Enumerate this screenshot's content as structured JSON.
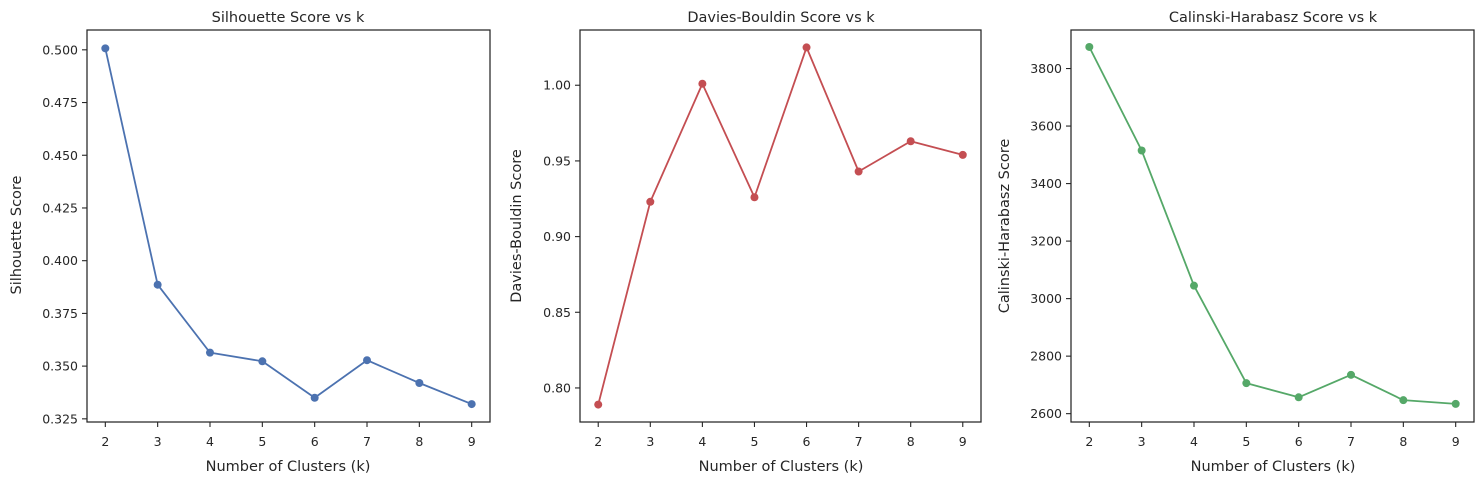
{
  "chart_data": [
    {
      "type": "line",
      "title": "Silhouette Score vs k",
      "xlabel": "Number of Clusters (k)",
      "ylabel": "Silhouette Score",
      "x": [
        2,
        3,
        4,
        5,
        6,
        7,
        8,
        9
      ],
      "xticks": [
        "2",
        "3",
        "4",
        "5",
        "6",
        "7",
        "8",
        "9"
      ],
      "yticks": [
        0.325,
        0.35,
        0.375,
        0.4,
        0.425,
        0.45,
        0.475,
        0.5
      ],
      "ytick_labels": [
        "0.325",
        "0.350",
        "0.375",
        "0.400",
        "0.425",
        "0.450",
        "0.475",
        "0.500"
      ],
      "xlim": [
        1.65,
        9.35
      ],
      "ylim": [
        0.3235,
        0.5094
      ],
      "grid": false,
      "series": [
        {
          "values": [
            0.5007,
            0.3886,
            0.3564,
            0.3523,
            0.335,
            0.3528,
            0.342,
            0.332
          ],
          "color": "#4c72b0",
          "marker": "circle"
        }
      ]
    },
    {
      "type": "line",
      "title": "Davies-Bouldin Score vs k",
      "xlabel": "Number of Clusters (k)",
      "ylabel": "Davies-Bouldin Score",
      "x": [
        2,
        3,
        4,
        5,
        6,
        7,
        8,
        9
      ],
      "xticks": [
        "2",
        "3",
        "4",
        "5",
        "6",
        "7",
        "8",
        "9"
      ],
      "yticks": [
        0.8,
        0.85,
        0.9,
        0.95,
        1.0
      ],
      "ytick_labels": [
        "0.80",
        "0.85",
        "0.90",
        "0.95",
        "1.00"
      ],
      "xlim": [
        1.65,
        9.35
      ],
      "ylim": [
        0.7775,
        1.0365
      ],
      "grid": false,
      "series": [
        {
          "values": [
            0.789,
            0.923,
            1.001,
            0.926,
            1.025,
            0.943,
            0.963,
            0.954
          ],
          "color": "#c44e52",
          "marker": "circle"
        }
      ]
    },
    {
      "type": "line",
      "title": "Calinski-Harabasz Score vs k",
      "xlabel": "Number of Clusters (k)",
      "ylabel": "Calinski-Harabasz Score",
      "x": [
        2,
        3,
        4,
        5,
        6,
        7,
        8,
        9
      ],
      "xticks": [
        "2",
        "3",
        "4",
        "5",
        "6",
        "7",
        "8",
        "9"
      ],
      "yticks": [
        2600,
        2800,
        3000,
        3200,
        3400,
        3600,
        3800
      ],
      "ytick_labels": [
        "2600",
        "2800",
        "3000",
        "3200",
        "3400",
        "3600",
        "3800"
      ],
      "xlim": [
        1.65,
        9.35
      ],
      "ylim": [
        2571,
        3934
      ],
      "grid": false,
      "series": [
        {
          "values": [
            3875,
            3515,
            3045,
            2706,
            2657,
            2735,
            2647,
            2634
          ],
          "color": "#55a868",
          "marker": "circle"
        }
      ]
    }
  ]
}
